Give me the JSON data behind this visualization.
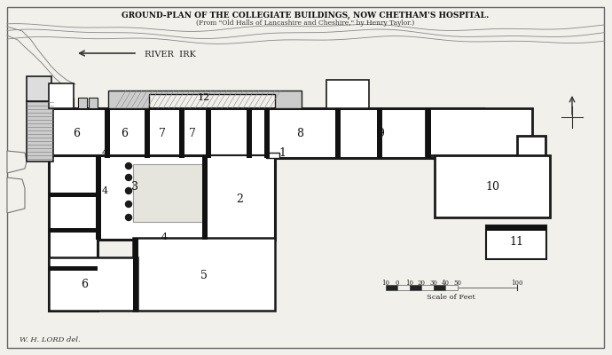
{
  "title": "GROUND-PLAN OF THE COLLEGIATE BUILDINGS, NOW CHETHAM'S HOSPITAL.",
  "subtitle": "(From \"Old Halls of Lancashire and Cheshire,\" by Henry Taylor.)",
  "bg_color": "#f2f0eb",
  "wall_color": "#1a1a1a",
  "room_fill": "#ffffff",
  "scale_label": "Scale of Feet",
  "attribution": "W. H. LORD del.",
  "river_label": "RIVER  IRK"
}
